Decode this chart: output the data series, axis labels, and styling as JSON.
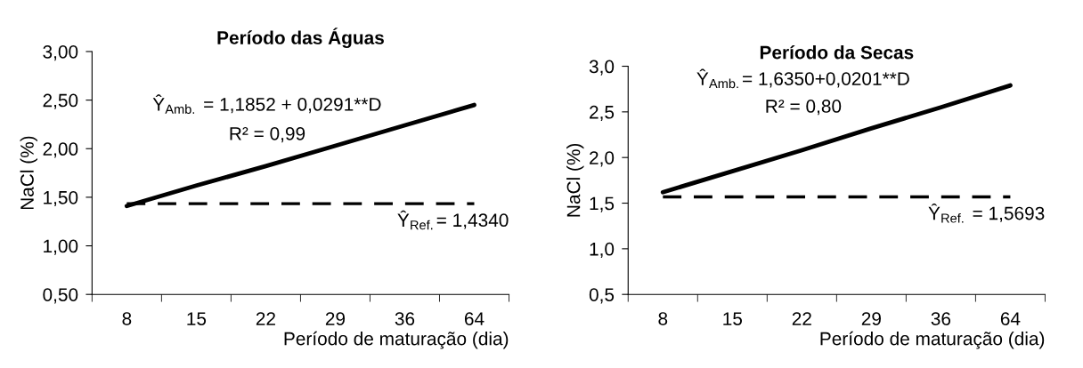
{
  "chart_data": [
    {
      "type": "line",
      "title": "Período das Águas",
      "xlabel": "Período de maturação (dia)",
      "ylabel": "NaCl (%)",
      "categories": [
        "8",
        "15",
        "22",
        "29",
        "36",
        "64"
      ],
      "series": [
        {
          "color": "#000000",
          "values": [
            1.41,
            1.62,
            1.82,
            2.03,
            2.24,
            2.45
          ]
        }
      ],
      "ylim": [
        0.5,
        3.0
      ],
      "yticks": [
        {
          "value": 0.5,
          "label": "0,50"
        },
        {
          "value": 1.0,
          "label": "1,00"
        },
        {
          "value": 1.5,
          "label": "1,50"
        },
        {
          "value": 2.0,
          "label": "2,00"
        },
        {
          "value": 2.5,
          "label": "2,50"
        },
        {
          "value": 3.0,
          "label": "3,00"
        }
      ],
      "ref_lines": [
        {
          "axis": "y",
          "value": 1.434,
          "label": "Ŷ$_{Ref.}$= 1,4340",
          "color": "#000000",
          "line_style": "dashed"
        }
      ],
      "annotations": [
        "Ŷ$_{Amb.}$ = 1,1852 + 0,0291**D",
        "R² = 0,99"
      ],
      "grid": false,
      "marker": "none",
      "line_style": "solid"
    },
    {
      "type": "line",
      "title": "Período da Secas",
      "xlabel": "Período de maturação (dia)",
      "ylabel": "NaCl (%)",
      "categories": [
        "8",
        "15",
        "22",
        "29",
        "36",
        "64"
      ],
      "series": [
        {
          "color": "#000000",
          "values": [
            1.62,
            1.85,
            2.08,
            2.32,
            2.55,
            2.79
          ]
        }
      ],
      "ylim": [
        0.5,
        3.0
      ],
      "yticks": [
        {
          "value": 0.5,
          "label": "0,5"
        },
        {
          "value": 1.0,
          "label": "1,0"
        },
        {
          "value": 1.5,
          "label": "1,5"
        },
        {
          "value": 2.0,
          "label": "2,0"
        },
        {
          "value": 2.5,
          "label": "2,5"
        },
        {
          "value": 3.0,
          "label": "3,0"
        }
      ],
      "ref_lines": [
        {
          "axis": "y",
          "value": 1.5693,
          "label": "Ŷ$_{Ref.}$ = 1,5693",
          "color": "#000000",
          "line_style": "dashed"
        }
      ],
      "annotations": [
        "Ŷ$_{Amb.}$= 1,6350+0,0201**D",
        "R² = 0,80"
      ],
      "grid": false,
      "marker": "none",
      "line_style": "solid"
    }
  ]
}
